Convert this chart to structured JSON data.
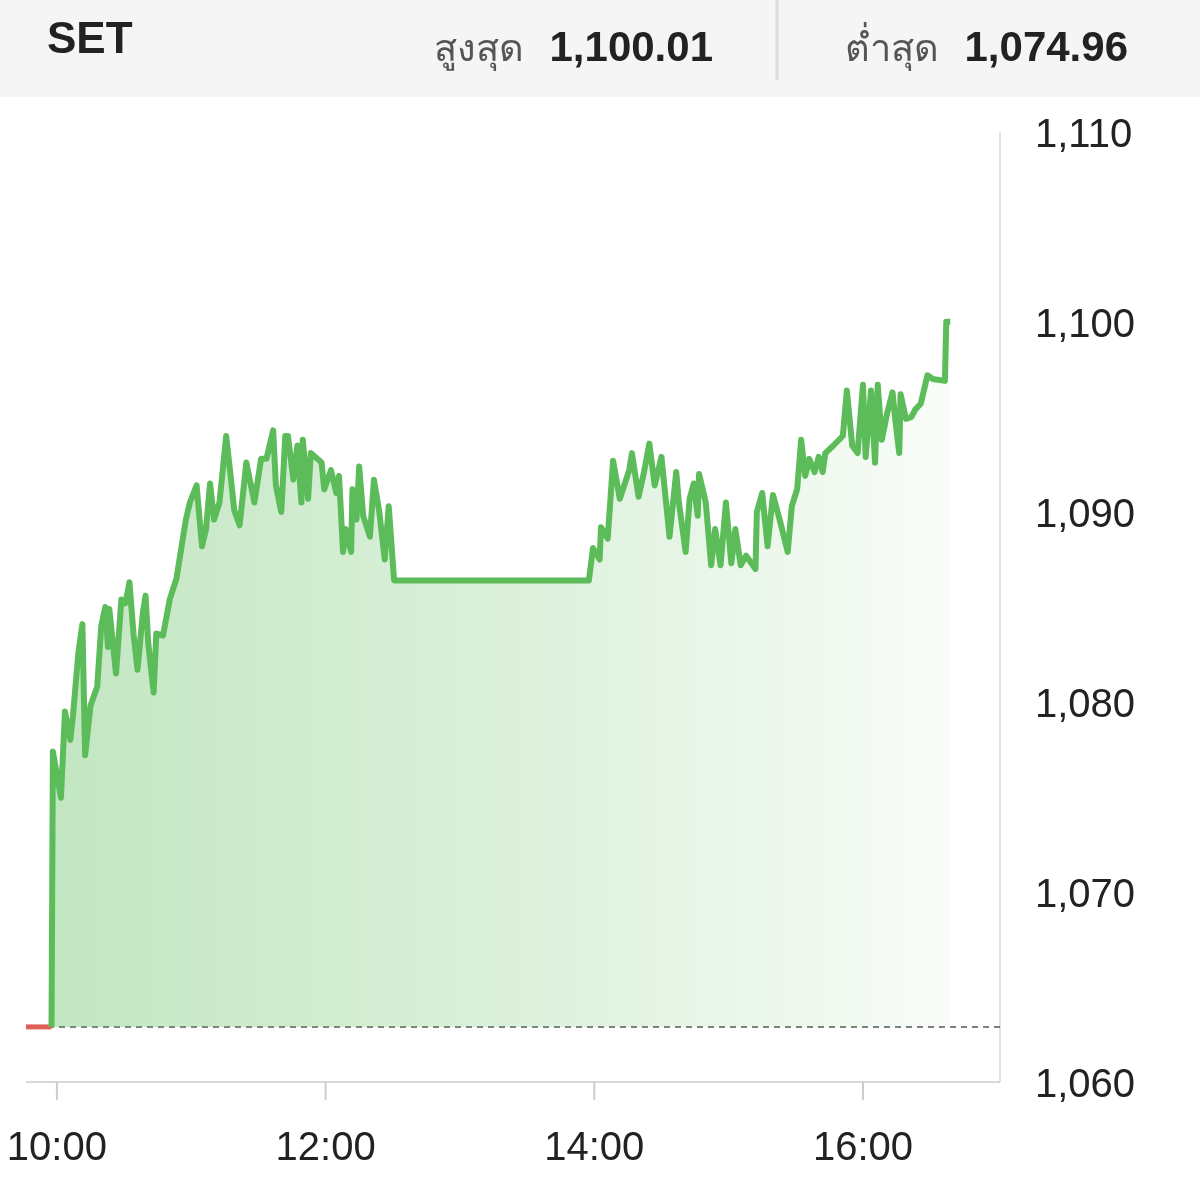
{
  "chart_data": {
    "type": "area",
    "title": "SET",
    "annotations": [
      "สูงสุด 1,100.01",
      "ต่ำสุด 1,074.96"
    ],
    "xlim": [
      9.77,
      17.02
    ],
    "ylim": [
      1060,
      1110
    ],
    "xticks": [
      {
        "value": 10,
        "label": "10:00"
      },
      {
        "value": 12,
        "label": "12:00"
      },
      {
        "value": 14,
        "label": "14:00"
      },
      {
        "value": 16,
        "label": "16:00"
      }
    ],
    "yticks": [
      {
        "value": 1060,
        "label": "1,060"
      },
      {
        "value": 1070,
        "label": "1,070"
      },
      {
        "value": 1080,
        "label": "1,080"
      },
      {
        "value": 1090,
        "label": "1,090"
      },
      {
        "value": 1100,
        "label": "1,100"
      },
      {
        "value": 1110,
        "label": "1,110"
      }
    ],
    "ref_lines": [
      {
        "axis": "y",
        "value": 1062.9,
        "color": "#555555",
        "line_style": "dashed"
      }
    ],
    "series": [
      {
        "type": "line",
        "color": "#e06055",
        "x": [
          9.77,
          9.96
        ],
        "values": [
          1062.9,
          1062.9
        ]
      },
      {
        "color": "#5cbc5a",
        "x": [
          9.96,
          9.97,
          10.03,
          10.06,
          10.1,
          10.12,
          10.16,
          10.19,
          10.21,
          10.25,
          10.3,
          10.33,
          10.36,
          10.38,
          10.39,
          10.44,
          10.48,
          10.51,
          10.54,
          10.57,
          10.6,
          10.64,
          10.66,
          10.68,
          10.72,
          10.74,
          10.79,
          10.84,
          10.89,
          10.96,
          10.99,
          11.04,
          11.08,
          11.11,
          11.14,
          11.17,
          11.21,
          11.26,
          11.29,
          11.32,
          11.36,
          11.41,
          11.47,
          11.52,
          11.56,
          11.61,
          11.63,
          11.67,
          11.7,
          11.72,
          11.76,
          11.79,
          11.82,
          11.83,
          11.87,
          11.89,
          11.97,
          11.99,
          12.04,
          12.08,
          12.1,
          12.13,
          12.15,
          12.19,
          12.2,
          12.23,
          12.25,
          12.28,
          12.33,
          12.36,
          12.4,
          12.44,
          12.47,
          12.51,
          13.96,
          13.99,
          14.04,
          14.05,
          14.1,
          14.14,
          14.19,
          14.26,
          14.28,
          14.33,
          14.37,
          14.41,
          14.45,
          14.5,
          14.56,
          14.61,
          14.63,
          14.68,
          14.71,
          14.74,
          14.77,
          14.78,
          14.83,
          14.87,
          14.9,
          14.94,
          14.98,
          15.02,
          15.05,
          15.09,
          15.13,
          15.2,
          15.21,
          15.25,
          15.29,
          15.33,
          15.38,
          15.44,
          15.47,
          15.51,
          15.54,
          15.57,
          15.6,
          15.64,
          15.67,
          15.7,
          15.72,
          15.78,
          15.85,
          15.88,
          15.92,
          15.96,
          16.0,
          16.02,
          16.06,
          16.09,
          16.11,
          16.14,
          16.18,
          16.22,
          16.24,
          16.27,
          16.28,
          16.32,
          16.36,
          16.39,
          16.43,
          16.48,
          16.52,
          16.61,
          16.62,
          16.65
        ],
        "values": [
          1062.9,
          1077.4,
          1074.96,
          1079.5,
          1078.0,
          1079.3,
          1082.6,
          1084.1,
          1077.2,
          1079.8,
          1080.8,
          1084.0,
          1085.0,
          1082.9,
          1084.9,
          1081.5,
          1085.4,
          1085.2,
          1086.3,
          1083.6,
          1081.7,
          1084.7,
          1085.6,
          1083.1,
          1080.5,
          1083.6,
          1083.5,
          1085.4,
          1086.5,
          1089.6,
          1090.5,
          1091.4,
          1088.2,
          1089.1,
          1091.5,
          1089.6,
          1090.5,
          1094.0,
          1092.1,
          1090.1,
          1089.3,
          1092.6,
          1090.5,
          1092.8,
          1092.8,
          1094.3,
          1091.4,
          1090.0,
          1094.0,
          1094.0,
          1091.7,
          1093.5,
          1090.5,
          1093.8,
          1090.7,
          1093.1,
          1092.6,
          1091.2,
          1092.2,
          1091.0,
          1091.9,
          1087.9,
          1089.1,
          1087.9,
          1091.2,
          1089.6,
          1092.4,
          1089.8,
          1088.7,
          1091.7,
          1090.0,
          1087.5,
          1090.3,
          1086.4,
          1086.4,
          1088.1,
          1087.5,
          1089.2,
          1088.6,
          1092.7,
          1090.7,
          1092.2,
          1093.1,
          1090.8,
          1092.1,
          1093.6,
          1091.4,
          1092.9,
          1088.7,
          1092.1,
          1090.5,
          1087.9,
          1090.7,
          1091.5,
          1089.8,
          1092.0,
          1090.5,
          1087.2,
          1089.1,
          1087.2,
          1090.5,
          1087.3,
          1089.1,
          1087.2,
          1087.7,
          1087.0,
          1090.0,
          1091.0,
          1088.2,
          1090.9,
          1089.6,
          1087.9,
          1090.3,
          1091.2,
          1093.8,
          1091.9,
          1092.8,
          1092.1,
          1092.9,
          1092.1,
          1093.1,
          1093.5,
          1094.0,
          1096.4,
          1093.5,
          1093.1,
          1096.7,
          1092.9,
          1096.4,
          1092.6,
          1096.7,
          1093.8,
          1095.2,
          1096.3,
          1094.9,
          1093.1,
          1096.2,
          1094.9,
          1095.0,
          1095.4,
          1095.7,
          1097.2,
          1097.0,
          1096.9,
          1100.01,
          1100.01
        ]
      }
    ]
  }
}
